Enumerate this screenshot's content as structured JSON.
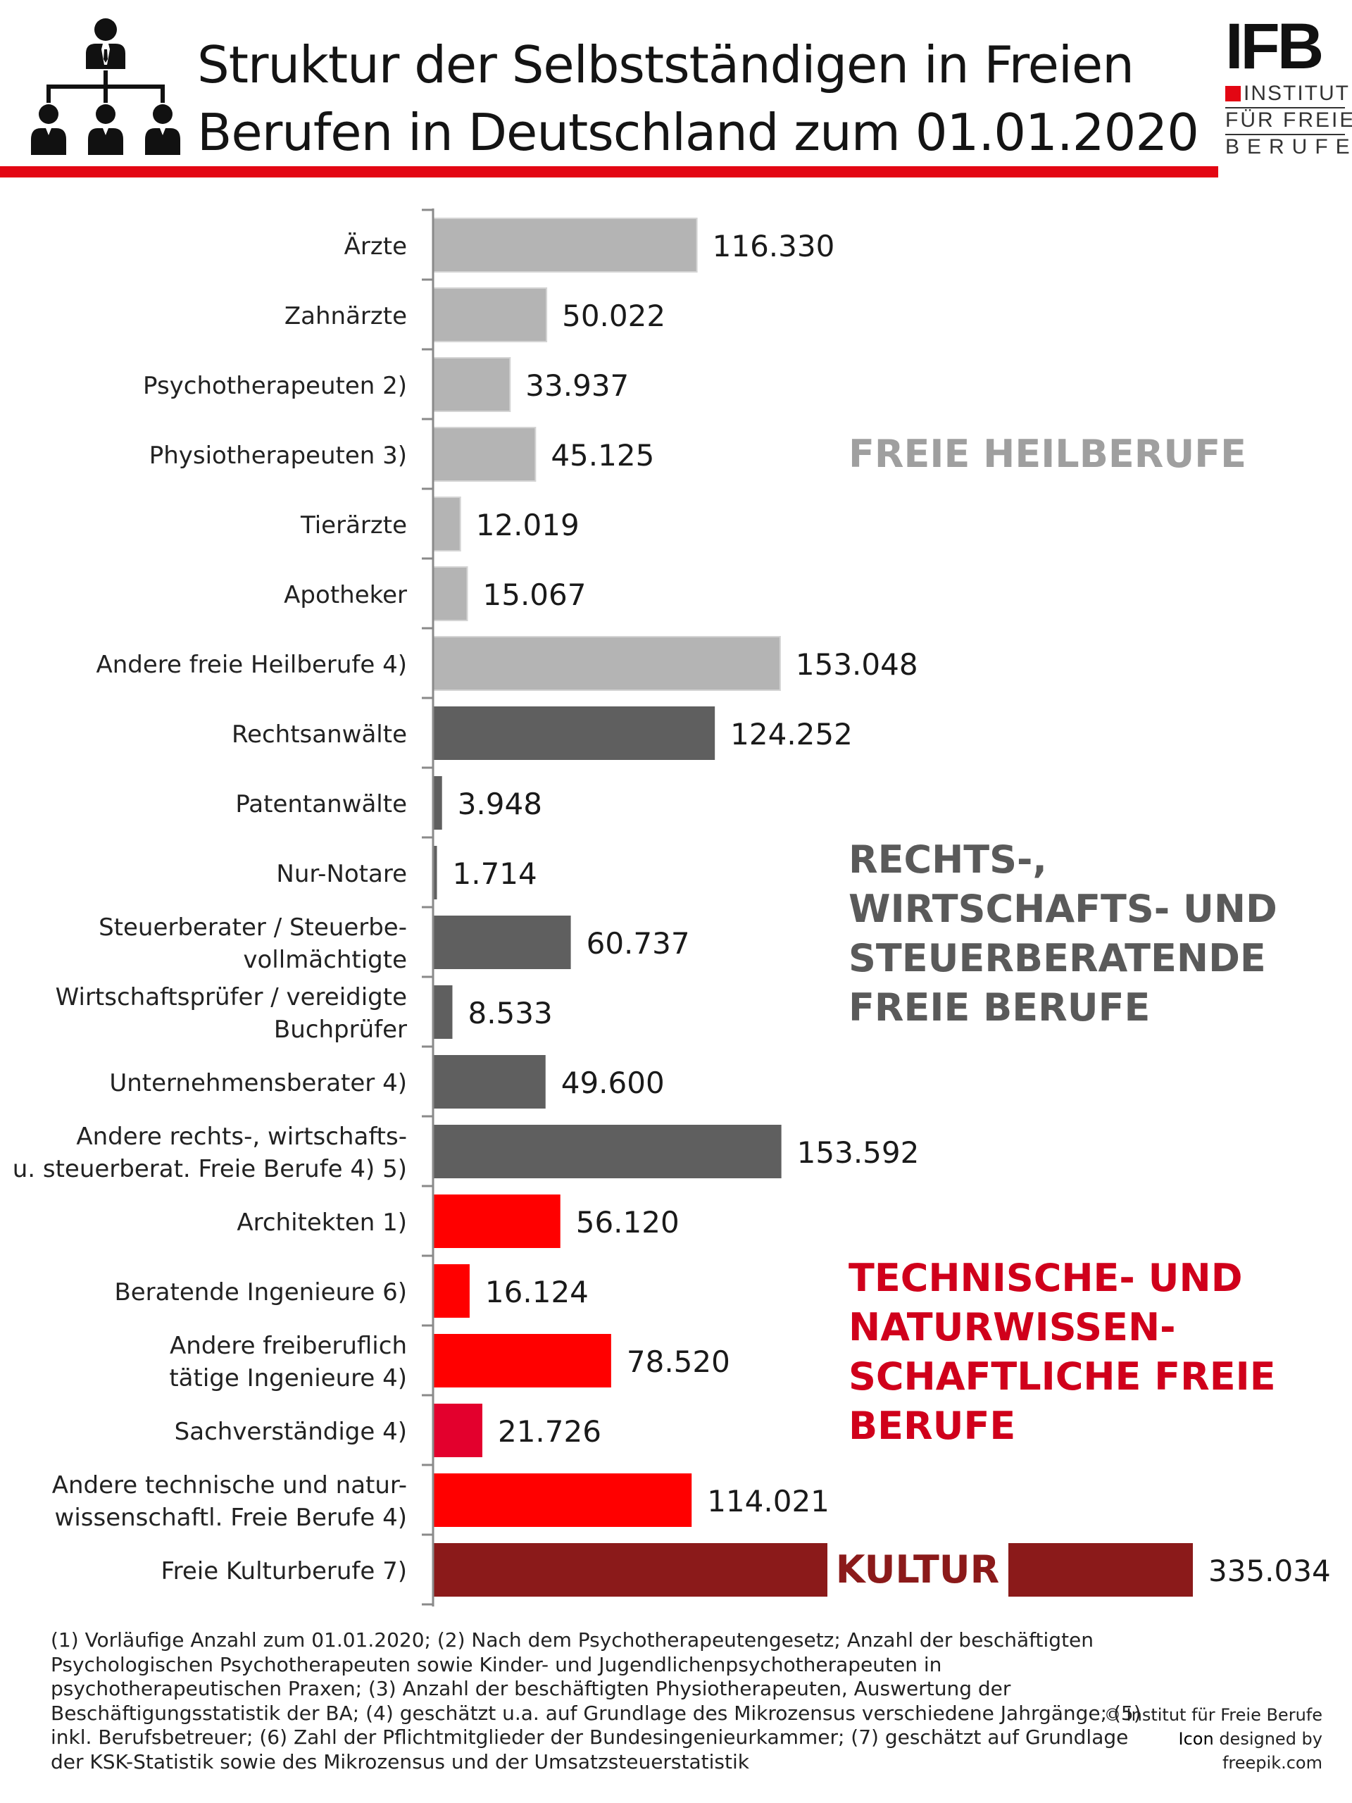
{
  "header": {
    "title_line1": "Struktur der Selbstständigen in Freien",
    "title_line2": "Berufen in Deutschland zum 01.01.2020"
  },
  "logo": {
    "mark": "IFB",
    "line1": "INSTITUT",
    "line2": "FÜR FREIE",
    "line3": "BERUFE"
  },
  "colors": {
    "heil": "#b4b4b4",
    "recht": "#5f5f5f",
    "technik": "#ff0000",
    "sachverstaendige": "#e3002d",
    "kultur": "#8b1a1a",
    "accent": "#e30613"
  },
  "chart_data": {
    "type": "bar",
    "orientation": "horizontal",
    "xlim": [
      0,
      340000
    ],
    "grid": false,
    "categories": [
      [
        "Ärzte"
      ],
      [
        "Zahnärzte"
      ],
      [
        "Psychotherapeuten 2)"
      ],
      [
        "Physiotherapeuten 3)"
      ],
      [
        "Tierärzte"
      ],
      [
        "Apotheker"
      ],
      [
        "Andere freie Heilberufe 4)"
      ],
      [
        "Rechtsanwälte"
      ],
      [
        "Patentanwälte"
      ],
      [
        "Nur-Notare"
      ],
      [
        "Steuerberater / Steuerbe-",
        "vollmächtigte"
      ],
      [
        "Wirtschaftsprüfer / vereidigte",
        "Buchprüfer"
      ],
      [
        "Unternehmensberater 4)"
      ],
      [
        "Andere rechts-, wirtschafts-",
        "u. steuerberat. Freie Berufe 4) 5)"
      ],
      [
        "Architekten 1)"
      ],
      [
        "Beratende Ingenieure 6)"
      ],
      [
        "Andere freiberuflich",
        "tätige Ingenieure 4)"
      ],
      [
        "Sachverständige 4)"
      ],
      [
        "Andere technische und natur-",
        "wissenschaftl. Freie Berufe 4)"
      ],
      [
        "Freie Kulturberufe 7)"
      ]
    ],
    "values": [
      116330,
      50022,
      33937,
      45125,
      12019,
      15067,
      153048,
      124252,
      3948,
      1714,
      60737,
      8533,
      49600,
      153592,
      56120,
      16124,
      78520,
      21726,
      114021,
      335034
    ],
    "value_labels": [
      "116.330",
      "50.022",
      "33.937",
      "45.125",
      "12.019",
      "15.067",
      "153.048",
      "124.252",
      "3.948",
      "1.714",
      "60.737",
      "8.533",
      "49.600",
      "153.592",
      "56.120",
      "16.124",
      "78.520",
      "21.726",
      "114.021",
      "335.034"
    ],
    "groups": [
      "heil",
      "heil",
      "heil",
      "heil",
      "heil",
      "heil",
      "heil",
      "recht",
      "recht",
      "recht",
      "recht",
      "recht",
      "recht",
      "recht",
      "technik",
      "technik",
      "technik",
      "sachverstaendige",
      "technik",
      "kultur"
    ],
    "group_labels": [
      {
        "group": "heil",
        "lines": [
          "FREIE HEILBERUFE"
        ]
      },
      {
        "group": "recht",
        "lines": [
          "RECHTS-,",
          "WIRTSCHAFTS-  UND",
          "STEUERBERATENDE",
          "FREIE BERUFE"
        ]
      },
      {
        "group": "technik",
        "lines": [
          "TECHNISCHE- UND",
          "NATURWISSEN-",
          "SCHAFTLICHE FREIE",
          "BERUFE"
        ]
      },
      {
        "group": "kultur",
        "lines": [
          "KULTUR"
        ]
      }
    ]
  },
  "footnote": {
    "lines": [
      "(1) Vorläufige Anzahl zum 01.01.2020; (2) Nach dem Psychotherapeutengesetz; Anzahl der  beschäftigten",
      "Psychologischen Psychotherapeuten sowie Kinder- und Jugendlichenpsychotherapeuten in",
      "psychotherapeutischen Praxen; (3) Anzahl der beschäftigten Physiotherapeuten, Auswertung der",
      "Beschäftigungsstatistik der BA; (4) geschätzt u.a. auf Grundlage des Mikrozensus verschiedene Jahrgänge; (5)",
      "inkl. Berufsbetreuer; (6) Zahl der Pflichtmitglieder der Bundesingenieurkammer; (7) geschätzt auf Grundlage",
      "der KSK-Statistik sowie des Mikrozensus und der Umsatzsteuerstatistik"
    ]
  },
  "credits": {
    "copyright": "© Institut für Freie Berufe",
    "icon_word": "Icon",
    "designed_by": "designed by",
    "source": "freepik.com"
  }
}
